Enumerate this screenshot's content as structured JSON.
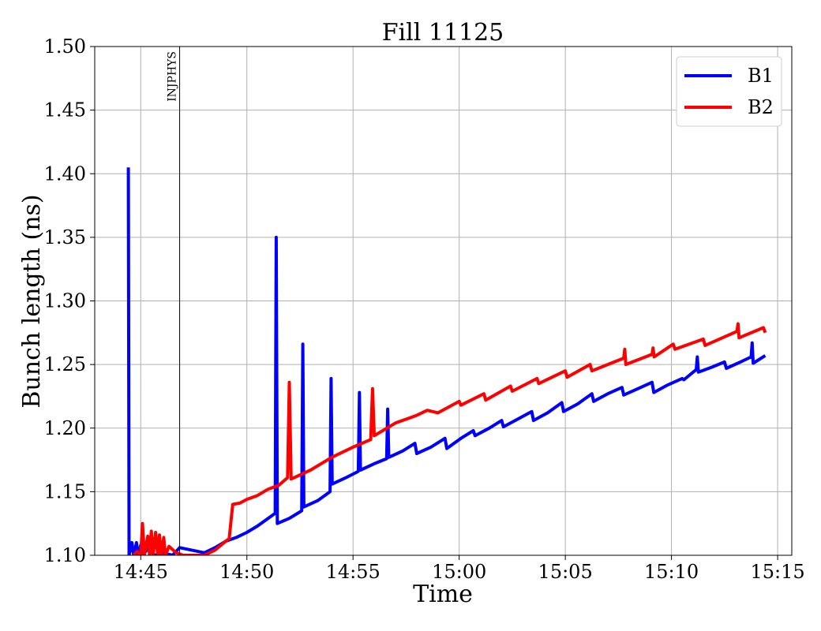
{
  "chart_data": {
    "type": "line",
    "title": "Fill 11125",
    "xlabel": "Time",
    "ylabel": "Bunch length (ns)",
    "ylim": [
      1.1,
      1.5
    ],
    "xlim": [
      "14:42:50",
      "15:15:40"
    ],
    "x_ticks": [
      "14:45",
      "14:50",
      "14:55",
      "15:00",
      "15:05",
      "15:10",
      "15:15"
    ],
    "y_ticks": [
      "1.10",
      "1.15",
      "1.20",
      "1.25",
      "1.30",
      "1.35",
      "1.40",
      "1.45",
      "1.50"
    ],
    "grid": true,
    "legend_position": "top-right",
    "vertical_marker": {
      "x": "14:46:50",
      "label": "INJPHYS"
    },
    "series": [
      {
        "name": "B1",
        "color": "#0000ff",
        "points": [
          [
            "14:44:25",
            1.405
          ],
          [
            "14:44:27",
            1.1
          ],
          [
            "14:44:35",
            1.11
          ],
          [
            "14:44:40",
            1.1
          ],
          [
            "14:44:48",
            1.11
          ],
          [
            "14:44:52",
            1.1
          ],
          [
            "14:45:00",
            1.108
          ],
          [
            "14:45:05",
            1.1
          ],
          [
            "14:45:20",
            1.105
          ],
          [
            "14:45:40",
            1.1
          ],
          [
            "14:46:00",
            1.102
          ],
          [
            "14:46:30",
            1.1
          ],
          [
            "14:46:50",
            1.106
          ],
          [
            "14:48:00",
            1.102
          ],
          [
            "14:48:30",
            1.106
          ],
          [
            "14:49:00",
            1.111
          ],
          [
            "14:49:30",
            1.114
          ],
          [
            "14:50:00",
            1.118
          ],
          [
            "14:50:30",
            1.123
          ],
          [
            "14:51:00",
            1.129
          ],
          [
            "14:51:20",
            1.133
          ],
          [
            "14:51:23",
            1.35
          ],
          [
            "14:51:26",
            1.125
          ],
          [
            "14:52:00",
            1.129
          ],
          [
            "14:52:35",
            1.135
          ],
          [
            "14:52:38",
            1.266
          ],
          [
            "14:52:41",
            1.138
          ],
          [
            "14:53:20",
            1.143
          ],
          [
            "14:53:55",
            1.15
          ],
          [
            "14:53:58",
            1.239
          ],
          [
            "14:54:01",
            1.156
          ],
          [
            "14:54:40",
            1.161
          ],
          [
            "14:55:15",
            1.166
          ],
          [
            "14:55:18",
            1.228
          ],
          [
            "14:55:21",
            1.167
          ],
          [
            "14:56:00",
            1.172
          ],
          [
            "14:56:35",
            1.176
          ],
          [
            "14:56:38",
            1.215
          ],
          [
            "14:56:41",
            1.177
          ],
          [
            "14:57:20",
            1.182
          ],
          [
            "14:57:55",
            1.188
          ],
          [
            "14:58:00",
            1.18
          ],
          [
            "14:58:40",
            1.185
          ],
          [
            "14:59:20",
            1.192
          ],
          [
            "14:59:25",
            1.184
          ],
          [
            "15:00:05",
            1.192
          ],
          [
            "15:00:40",
            1.198
          ],
          [
            "15:00:45",
            1.194
          ],
          [
            "15:01:25",
            1.2
          ],
          [
            "15:02:00",
            1.206
          ],
          [
            "15:02:05",
            1.201
          ],
          [
            "15:02:45",
            1.207
          ],
          [
            "15:03:25",
            1.213
          ],
          [
            "15:03:30",
            1.206
          ],
          [
            "15:04:10",
            1.212
          ],
          [
            "15:04:50",
            1.22
          ],
          [
            "15:04:55",
            1.213
          ],
          [
            "15:05:35",
            1.219
          ],
          [
            "15:06:15",
            1.227
          ],
          [
            "15:06:20",
            1.221
          ],
          [
            "15:07:00",
            1.227
          ],
          [
            "15:07:40",
            1.232
          ],
          [
            "15:07:45",
            1.226
          ],
          [
            "15:08:25",
            1.231
          ],
          [
            "15:09:05",
            1.236
          ],
          [
            "15:09:10",
            1.228
          ],
          [
            "15:09:50",
            1.234
          ],
          [
            "15:10:30",
            1.239
          ],
          [
            "15:10:35",
            1.238
          ],
          [
            "15:11:10",
            1.246
          ],
          [
            "15:11:13",
            1.256
          ],
          [
            "15:11:16",
            1.244
          ],
          [
            "15:11:55",
            1.248
          ],
          [
            "15:12:30",
            1.252
          ],
          [
            "15:12:35",
            1.247
          ],
          [
            "15:13:15",
            1.252
          ],
          [
            "15:13:45",
            1.256
          ],
          [
            "15:13:48",
            1.267
          ],
          [
            "15:13:51",
            1.251
          ],
          [
            "15:14:25",
            1.257
          ]
        ]
      },
      {
        "name": "B2",
        "color": "#ff0000",
        "points": [
          [
            "14:44:40",
            1.1
          ],
          [
            "14:44:50",
            1.103
          ],
          [
            "14:45:00",
            1.1
          ],
          [
            "14:45:05",
            1.125
          ],
          [
            "14:45:10",
            1.1
          ],
          [
            "14:45:20",
            1.115
          ],
          [
            "14:45:25",
            1.1
          ],
          [
            "14:45:30",
            1.119
          ],
          [
            "14:45:35",
            1.1
          ],
          [
            "14:45:42",
            1.118
          ],
          [
            "14:45:48",
            1.1
          ],
          [
            "14:45:53",
            1.116
          ],
          [
            "14:45:58",
            1.1
          ],
          [
            "14:46:05",
            1.114
          ],
          [
            "14:46:10",
            1.1
          ],
          [
            "14:46:20",
            1.107
          ],
          [
            "14:46:40",
            1.102
          ],
          [
            "14:47:00",
            1.1
          ],
          [
            "14:47:30",
            1.1
          ],
          [
            "14:48:00",
            1.1
          ],
          [
            "14:48:30",
            1.104
          ],
          [
            "14:49:00",
            1.111
          ],
          [
            "14:49:10",
            1.113
          ],
          [
            "14:49:20",
            1.14
          ],
          [
            "14:49:40",
            1.141
          ],
          [
            "14:50:00",
            1.144
          ],
          [
            "14:50:30",
            1.147
          ],
          [
            "14:51:00",
            1.152
          ],
          [
            "14:51:30",
            1.155
          ],
          [
            "14:51:55",
            1.161
          ],
          [
            "14:52:00",
            1.236
          ],
          [
            "14:52:05",
            1.16
          ],
          [
            "14:53:00",
            1.167
          ],
          [
            "14:54:00",
            1.177
          ],
          [
            "14:55:00",
            1.185
          ],
          [
            "14:55:50",
            1.191
          ],
          [
            "14:55:55",
            1.231
          ],
          [
            "14:56:00",
            1.194
          ],
          [
            "14:57:00",
            1.204
          ],
          [
            "14:57:30",
            1.207
          ],
          [
            "14:58:00",
            1.21
          ],
          [
            "14:58:30",
            1.214
          ],
          [
            "14:59:00",
            1.212
          ],
          [
            "15:00:00",
            1.221
          ],
          [
            "15:00:05",
            1.218
          ],
          [
            "15:01:10",
            1.227
          ],
          [
            "15:01:15",
            1.222
          ],
          [
            "15:02:25",
            1.233
          ],
          [
            "15:02:30",
            1.229
          ],
          [
            "15:03:40",
            1.239
          ],
          [
            "15:03:45",
            1.235
          ],
          [
            "15:05:00",
            1.245
          ],
          [
            "15:05:05",
            1.24
          ],
          [
            "15:06:10",
            1.25
          ],
          [
            "15:06:15",
            1.245
          ],
          [
            "15:07:45",
            1.255
          ],
          [
            "15:07:48",
            1.262
          ],
          [
            "15:07:51",
            1.25
          ],
          [
            "15:09:05",
            1.258
          ],
          [
            "15:09:08",
            1.263
          ],
          [
            "15:09:11",
            1.256
          ],
          [
            "15:10:05",
            1.266
          ],
          [
            "15:10:10",
            1.262
          ],
          [
            "15:11:30",
            1.27
          ],
          [
            "15:11:35",
            1.265
          ],
          [
            "15:13:05",
            1.276
          ],
          [
            "15:13:08",
            1.282
          ],
          [
            "15:13:11",
            1.271
          ],
          [
            "15:14:20",
            1.279
          ],
          [
            "15:14:25",
            1.275
          ]
        ]
      }
    ]
  }
}
